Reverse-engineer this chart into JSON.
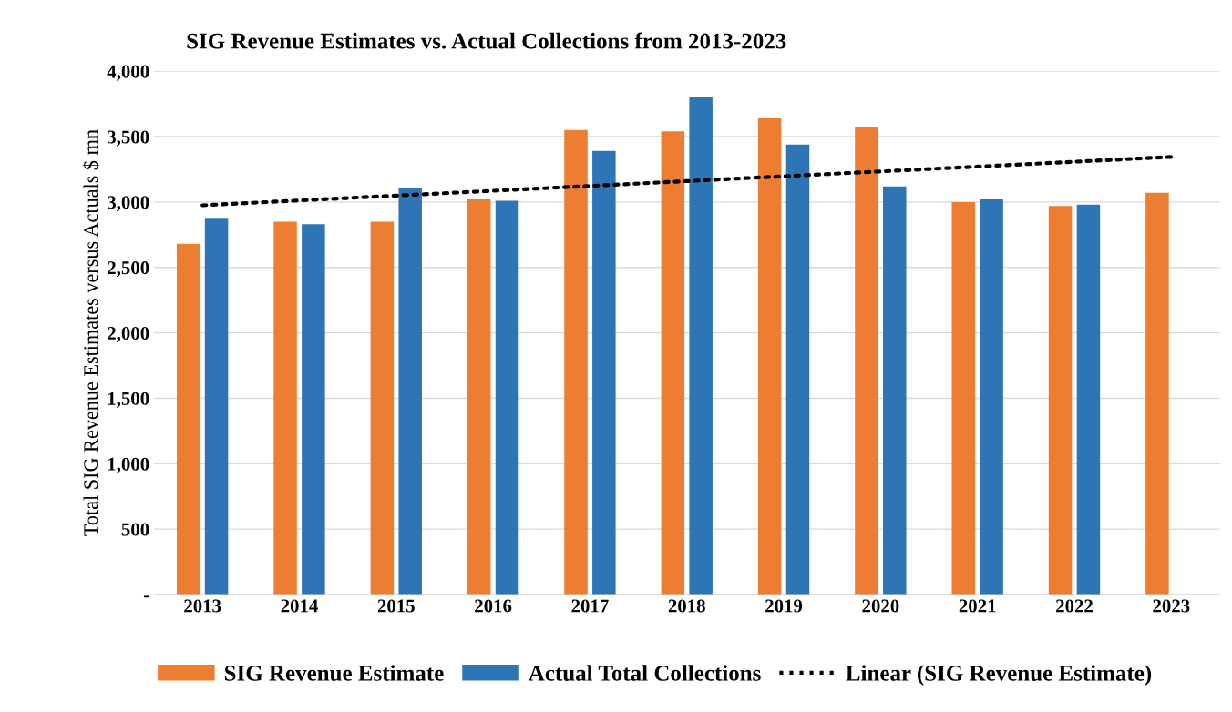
{
  "chart_data": {
    "type": "bar",
    "title": "SIG Revenue Estimates vs. Actual Collections from 2013-2023",
    "ylabel": "Total SIG Revenue Estimates versus Actuals $ mn",
    "categories": [
      "2013",
      "2014",
      "2015",
      "2016",
      "2017",
      "2018",
      "2019",
      "2020",
      "2021",
      "2022",
      "2023"
    ],
    "series": [
      {
        "name": "SIG Revenue Estimate",
        "color": "#ed7d31",
        "values": [
          2680,
          2850,
          2850,
          3020,
          3550,
          3540,
          3640,
          3570,
          3000,
          2970,
          3070
        ]
      },
      {
        "name": "Actual Total Collections",
        "color": "#2e75b6",
        "values": [
          2880,
          2830,
          3110,
          3010,
          3390,
          3800,
          3440,
          3120,
          3020,
          2980,
          null
        ]
      },
      {
        "name": "Linear (SIG Revenue Estimate)",
        "type": "line",
        "color": "#000000",
        "line_style": "dotted",
        "values": [
          2975,
          3012,
          3049,
          3086,
          3123,
          3160,
          3197,
          3234,
          3271,
          3308,
          3345
        ]
      }
    ],
    "ylim": [
      0,
      4000
    ],
    "yticks": [
      {
        "value": 0,
        "label": "-"
      },
      {
        "value": 500,
        "label": "500"
      },
      {
        "value": 1000,
        "label": "1,000"
      },
      {
        "value": 1500,
        "label": "1,500"
      },
      {
        "value": 2000,
        "label": "2,000"
      },
      {
        "value": 2500,
        "label": "2,500"
      },
      {
        "value": 3000,
        "label": "3,000"
      },
      {
        "value": 3500,
        "label": "3,500"
      },
      {
        "value": 4000,
        "label": "4,000"
      }
    ],
    "grid": "y",
    "legend": "bottom"
  }
}
